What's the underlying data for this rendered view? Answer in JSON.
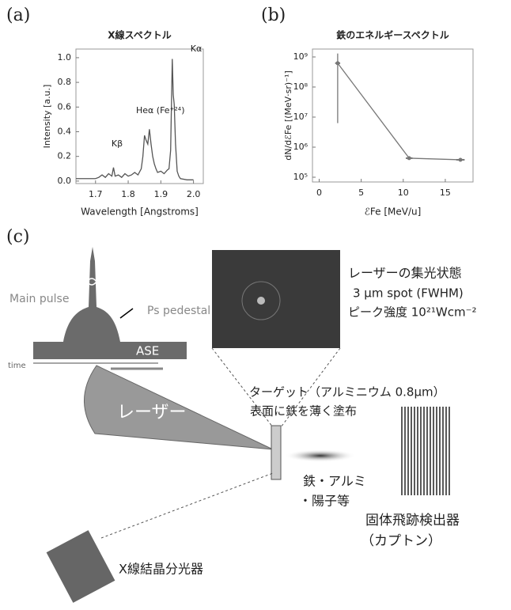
{
  "panels": [
    "(a)",
    "(b)",
    "(c)"
  ],
  "chart_data": [
    {
      "type": "line",
      "title": "X線スペクトル",
      "x_label": "Wavelength [Angstroms]",
      "y_label": "Intensity [a.u.]",
      "annotations": [
        "Kβ",
        "Heα (Fe⁺²⁴)",
        "Kα"
      ],
      "color": "#555555",
      "x": [
        1.64,
        1.66,
        1.68,
        1.7,
        1.71,
        1.72,
        1.73,
        1.74,
        1.75,
        1.755,
        1.76,
        1.77,
        1.78,
        1.79,
        1.8,
        1.81,
        1.82,
        1.83,
        1.84,
        1.845,
        1.85,
        1.855,
        1.86,
        1.865,
        1.87,
        1.875,
        1.88,
        1.885,
        1.89,
        1.9,
        1.91,
        1.92,
        1.925,
        1.93,
        1.935,
        1.938,
        1.941,
        1.945,
        1.95,
        1.955,
        1.96,
        1.98,
        2.0
      ],
      "values": [
        0.02,
        0.02,
        0.02,
        0.02,
        0.03,
        0.05,
        0.03,
        0.06,
        0.04,
        0.11,
        0.04,
        0.05,
        0.03,
        0.06,
        0.04,
        0.05,
        0.07,
        0.05,
        0.1,
        0.2,
        0.37,
        0.33,
        0.3,
        0.42,
        0.3,
        0.2,
        0.14,
        0.1,
        0.07,
        0.08,
        0.06,
        0.09,
        0.1,
        0.25,
        0.99,
        0.7,
        0.62,
        0.3,
        0.08,
        0.04,
        0.02,
        0.01,
        0.01
      ],
      "xlim": [
        1.64,
        2.03
      ],
      "ylim": [
        -0.02,
        1.07
      ],
      "xticks": [
        1.7,
        1.8,
        1.9,
        {
          "value": 2,
          "label": "2.0"
        }
      ],
      "yticks": [
        {
          "value": 0,
          "label": "0.0"
        },
        0.2,
        0.4,
        0.6,
        0.8,
        {
          "value": 1,
          "label": "1.0"
        }
      ]
    },
    {
      "type": "scatter",
      "title": "鉄のエネルギースペクトル",
      "x_label": "ℰFe [MeV/u]",
      "y_label": "dN/dℰFe [(MeV·sr)⁻¹]",
      "color": "#777777",
      "log_y": true,
      "x": [
        2.2,
        10.7,
        16.8
      ],
      "values": [
        620000000,
        430000,
        380000
      ],
      "xerr": [
        0.3,
        0.4,
        0.5
      ],
      "y_low": [
        6300000,
        null,
        null
      ],
      "y_high": [
        1300000000,
        null,
        null
      ],
      "xlim": [
        -0.8,
        18.3
      ],
      "ylim": [
        69500,
        1830000000
      ],
      "xticks": [
        0,
        5,
        10,
        15
      ],
      "yticks": [
        {
          "value": 100000,
          "label": "10⁵"
        },
        {
          "value": 1000000,
          "label": "10⁶"
        },
        {
          "value": 10000000,
          "label": "10⁷"
        },
        {
          "value": 100000000,
          "label": "10⁸"
        },
        {
          "value": 1000000000,
          "label": "10⁹"
        }
      ]
    }
  ],
  "diagram": {
    "main_pulse": "Main pulse",
    "ps_pedestal": "Ps pedestal",
    "ase": "ASE",
    "time": "time",
    "laser": "レーザー",
    "focus_title": "レーザーの集光状態",
    "focus_spot": "3 μm spot (FWHM)",
    "focus_peak": "ピーク強度 10²¹Wcm⁻²",
    "target_1": "ターゲット（アルミニウム  0.8μm）",
    "target_2": "表面に鉄を薄く塗布",
    "ions_1": "鉄・アルミ",
    "ions_2": "・陽子等",
    "detector_1": "固体飛跡検出器",
    "detector_2": "（カプトン）",
    "spectrometer": "X線結晶分光器"
  }
}
